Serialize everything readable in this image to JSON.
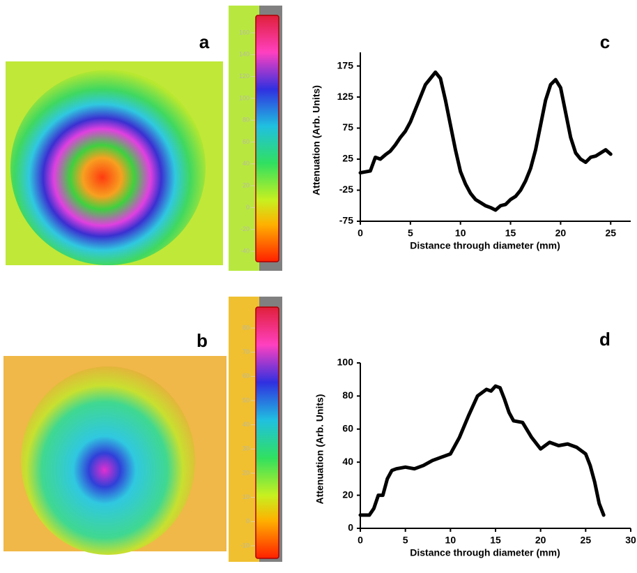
{
  "images": [
    {
      "panel_label": "a",
      "colorbar_ticks": [
        160,
        140,
        120,
        100,
        80,
        60,
        40,
        20,
        0,
        -20,
        -40
      ]
    },
    {
      "panel_label": "b",
      "colorbar_ticks": [
        80,
        70,
        60,
        50,
        40,
        30,
        20,
        10,
        0,
        -10
      ]
    }
  ],
  "chart_data": [
    {
      "type": "line",
      "panel_label": "c",
      "xlabel": "Distance through diameter (mm)",
      "ylabel": "Attenuation  (Arb. Units)",
      "x": [
        0,
        1,
        1.5,
        2,
        2.5,
        3,
        3.5,
        4,
        4.5,
        5,
        5.5,
        6,
        6.5,
        7,
        7.5,
        8,
        8.5,
        9,
        9.5,
        10,
        10.5,
        11,
        11.5,
        12,
        12.5,
        13,
        13.5,
        14,
        14.5,
        15,
        15.5,
        16,
        16.5,
        17,
        17.5,
        18,
        18.5,
        19,
        19.5,
        20,
        20.5,
        21,
        21.5,
        22,
        22.5,
        23,
        23.5,
        24,
        24.5,
        25
      ],
      "series": [
        {
          "color": "#000000",
          "values": [
            3,
            6,
            28,
            25,
            32,
            38,
            48,
            60,
            70,
            85,
            105,
            125,
            145,
            155,
            165,
            155,
            120,
            80,
            40,
            5,
            -15,
            -30,
            -40,
            -45,
            -50,
            -53,
            -57,
            -50,
            -48,
            -40,
            -35,
            -25,
            -10,
            10,
            40,
            80,
            120,
            145,
            153,
            140,
            100,
            60,
            35,
            25,
            20,
            28,
            30,
            35,
            40,
            33
          ]
        }
      ],
      "xlim": [
        0,
        27
      ],
      "ylim": [
        -75,
        197
      ],
      "xticks": [
        0,
        5,
        10,
        15,
        20,
        25
      ],
      "yticks": [
        -75,
        -25,
        25,
        75,
        125,
        175
      ]
    },
    {
      "type": "line",
      "panel_label": "d",
      "xlabel": "Distance through diameter (mm)",
      "ylabel": "Attenuation  (Arb. Units)",
      "x": [
        0,
        1,
        1.5,
        2,
        2.5,
        3,
        3.5,
        4,
        5,
        6,
        7,
        8,
        9,
        10,
        11,
        12,
        13,
        14,
        14.5,
        15,
        15.5,
        16,
        16.5,
        17,
        18,
        19,
        20,
        21,
        22,
        23,
        24,
        25,
        25.5,
        26,
        26.5,
        27
      ],
      "series": [
        {
          "color": "#000000",
          "values": [
            8,
            8,
            12,
            20,
            20,
            30,
            35,
            36,
            37,
            36,
            38,
            41,
            43,
            45,
            55,
            68,
            80,
            84,
            83,
            86,
            85,
            78,
            70,
            65,
            64,
            55,
            48,
            52,
            50,
            51,
            49,
            45,
            38,
            28,
            15,
            8
          ]
        }
      ],
      "xlim": [
        0,
        30
      ],
      "ylim": [
        0,
        100
      ],
      "xticks": [
        0,
        5,
        10,
        15,
        20,
        25,
        30
      ],
      "yticks": [
        0,
        20,
        40,
        60,
        80,
        100
      ]
    }
  ]
}
